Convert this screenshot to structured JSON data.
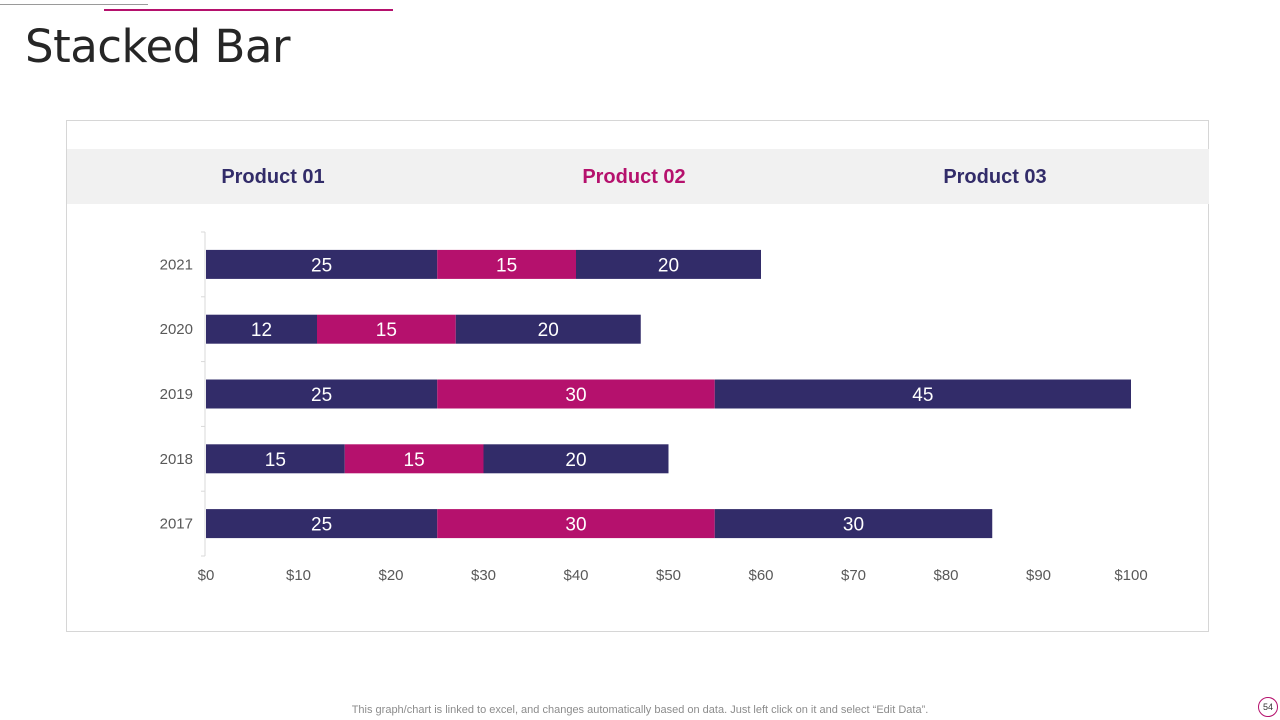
{
  "slide": {
    "title": "Stacked Bar",
    "footer_note": "This graph/chart is linked to excel,  and changes automatically based on data. Just left click on it and select “Edit Data”.",
    "page_number": "54"
  },
  "colors": {
    "product_01": "#322c69",
    "product_02": "#b5116d",
    "product_03": "#322c69",
    "accent": "#b5116d"
  },
  "chart_data": {
    "type": "bar",
    "orientation": "horizontal",
    "stacked": true,
    "title": "",
    "xlabel": "",
    "ylabel": "",
    "categories": [
      "2021",
      "2020",
      "2019",
      "2018",
      "2017"
    ],
    "series": [
      {
        "name": "Product 01",
        "values": [
          25,
          12,
          25,
          15,
          25
        ]
      },
      {
        "name": "Product 02",
        "values": [
          15,
          15,
          30,
          15,
          30
        ]
      },
      {
        "name": "Product 03",
        "values": [
          20,
          20,
          45,
          20,
          30
        ]
      }
    ],
    "xlim": [
      0,
      100
    ],
    "x_ticks": [
      "$0",
      "$10",
      "$20",
      "$30",
      "$40",
      "$50",
      "$60",
      "$70",
      "$80",
      "$90",
      "$100"
    ],
    "legend_position": "top",
    "grid": false,
    "data_labels": true
  }
}
